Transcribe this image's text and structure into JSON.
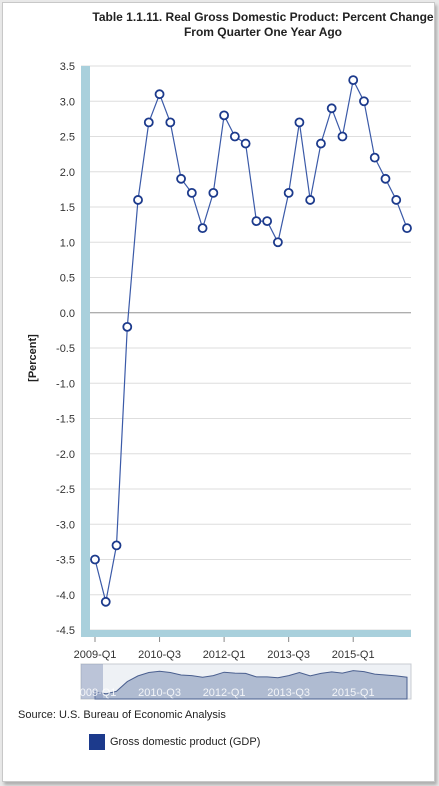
{
  "title_line1": "Table 1.1.11. Real Gross Domestic Product: Percent Change",
  "title_line2": "From Quarter One Year Ago",
  "source": "Source: U.S. Bureau of Economic Analysis",
  "colors": {
    "series": "#3b5aa8",
    "legend": "#1c3a8c",
    "axis_band": "#a9d0dc",
    "zero_line": "#999999"
  },
  "chart_data": {
    "type": "line",
    "ylabel": "[Percent]",
    "ylim": [
      -4.5,
      3.5
    ],
    "yticks": [
      3.5,
      3.0,
      2.5,
      2.0,
      1.5,
      1.0,
      0.5,
      0.0,
      -0.5,
      -1.0,
      -1.5,
      -2.0,
      -2.5,
      -3.0,
      -3.5,
      -4.0,
      -4.5
    ],
    "ytick_labels": [
      "3.5",
      "3.0",
      "2.5",
      "2.0",
      "1.5",
      "1.0",
      "0.5",
      "0.0",
      "-0.5",
      "-1.0",
      "-1.5",
      "-2.0",
      "-2.5",
      "-3.0",
      "-3.5",
      "-4.0",
      "-4.5"
    ],
    "grid": true,
    "x": [
      "2009-Q1",
      "2009-Q2",
      "2009-Q3",
      "2009-Q4",
      "2010-Q1",
      "2010-Q2",
      "2010-Q3",
      "2010-Q4",
      "2011-Q1",
      "2011-Q2",
      "2011-Q3",
      "2011-Q4",
      "2012-Q1",
      "2012-Q2",
      "2012-Q3",
      "2012-Q4",
      "2013-Q1",
      "2013-Q2",
      "2013-Q3",
      "2013-Q4",
      "2014-Q1",
      "2014-Q2",
      "2014-Q3",
      "2014-Q4",
      "2015-Q1",
      "2015-Q2",
      "2015-Q3",
      "2015-Q4",
      "2016-Q1",
      "2016-Q2"
    ],
    "xtick_labels": [
      "2009-Q1",
      "2010-Q3",
      "2012-Q1",
      "2013-Q3",
      "2015-Q1"
    ],
    "series": [
      {
        "name": "Gross domestic product (GDP)",
        "values": [
          -3.5,
          -4.1,
          -3.3,
          -0.2,
          1.6,
          2.7,
          3.1,
          2.7,
          1.9,
          1.7,
          1.2,
          1.7,
          2.8,
          2.5,
          2.4,
          1.3,
          1.3,
          1.0,
          1.7,
          2.7,
          1.6,
          2.4,
          2.9,
          2.5,
          3.3,
          3.0,
          2.2,
          1.9,
          1.6,
          1.2
        ]
      }
    ],
    "legend_position": "bottom-left"
  }
}
